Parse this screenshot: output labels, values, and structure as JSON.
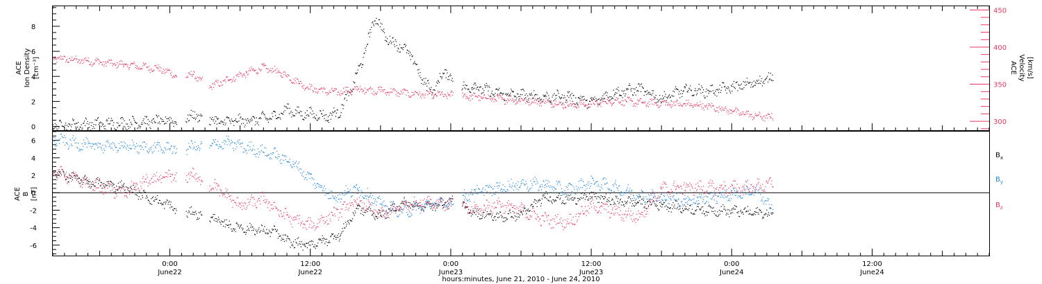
{
  "colors": {
    "black": "#000000",
    "pink": "#e8365f",
    "blue": "#1f86e0",
    "frame": "#000000",
    "background": "#ffffff"
  },
  "chart_data": [
    {
      "type": "scatter",
      "title": "",
      "time_range": [
        "2010-06-21 14:00",
        "2010-06-24 22:00"
      ],
      "xlabel": "hours:minutes, June 21, 2010 - June 24, 2010",
      "x_ticks": [
        {
          "time": "2010-06-22 00:00",
          "line1": "0:00",
          "line2": "June22"
        },
        {
          "time": "2010-06-22 12:00",
          "line1": "12:00",
          "line2": "June22"
        },
        {
          "time": "2010-06-23 00:00",
          "line1": "0:00",
          "line2": "June23"
        },
        {
          "time": "2010-06-23 12:00",
          "line1": "12:00",
          "line2": "June23"
        },
        {
          "time": "2010-06-24 00:00",
          "line1": "0:00",
          "line2": "June24"
        },
        {
          "time": "2010-06-24 12:00",
          "line1": "12:00",
          "line2": "June24"
        }
      ],
      "ylabel_left": [
        "ACE",
        "Ion Density",
        "[cm⁻³]"
      ],
      "ylabel_right": [
        "ACE",
        "Velocity",
        "[km/s]"
      ],
      "ylim_left": [
        -0.3,
        9.6
      ],
      "ylim_right": [
        288,
        455
      ],
      "yticks_left": [
        "0",
        "2",
        "4",
        "6",
        "8"
      ],
      "yticks_right": [
        "300",
        "350",
        "400",
        "450"
      ],
      "series": [
        {
          "axis": "left",
          "color": "#000000",
          "points": [
            [
              "2010-06-21 14:00",
              0.1
            ],
            [
              "2010-06-21 18:00",
              0.2
            ],
            [
              "2010-06-21 22:00",
              0.35
            ],
            [
              "2010-06-22 00:30",
              0.5
            ],
            [
              "2010-06-22 02:30",
              0.9
            ],
            [
              "2010-06-22 04:00",
              0.35
            ],
            [
              "2010-06-22 07:00",
              0.5
            ],
            [
              "2010-06-22 09:00",
              0.8
            ],
            [
              "2010-06-22 10:00",
              1.4
            ],
            [
              "2010-06-22 11:00",
              1.0
            ],
            [
              "2010-06-22 12:00",
              1.0
            ],
            [
              "2010-06-22 13:30",
              0.8
            ],
            [
              "2010-06-22 14:30",
              1.2
            ],
            [
              "2010-06-22 15:30",
              3.0
            ],
            [
              "2010-06-22 16:30",
              5.5
            ],
            [
              "2010-06-22 17:30",
              8.8
            ],
            [
              "2010-06-22 18:30",
              7.0
            ],
            [
              "2010-06-22 19:30",
              6.5
            ],
            [
              "2010-06-22 20:30",
              5.8
            ],
            [
              "2010-06-22 21:30",
              3.8
            ],
            [
              "2010-06-22 22:30",
              2.8
            ],
            [
              "2010-06-22 23:30",
              4.5
            ],
            [
              "2010-06-23 00:30",
              3.0
            ],
            [
              "2010-06-23 02:00",
              3.2
            ],
            [
              "2010-06-23 04:00",
              2.6
            ],
            [
              "2010-06-23 06:00",
              2.5
            ],
            [
              "2010-06-23 08:00",
              2.3
            ],
            [
              "2010-06-23 10:00",
              2.4
            ],
            [
              "2010-06-23 12:00",
              1.9
            ],
            [
              "2010-06-23 14:00",
              2.7
            ],
            [
              "2010-06-23 16:00",
              3.0
            ],
            [
              "2010-06-23 18:00",
              2.2
            ],
            [
              "2010-06-23 20:00",
              2.9
            ],
            [
              "2010-06-23 22:00",
              2.8
            ],
            [
              "2010-06-24 00:00",
              3.1
            ],
            [
              "2010-06-24 02:00",
              3.5
            ],
            [
              "2010-06-24 03:30",
              3.9
            ]
          ]
        },
        {
          "axis": "right",
          "color": "#e8365f",
          "points": [
            [
              "2010-06-21 14:00",
              385
            ],
            [
              "2010-06-21 17:00",
              381
            ],
            [
              "2010-06-21 20:00",
              376
            ],
            [
              "2010-06-21 23:00",
              371
            ],
            [
              "2010-06-22 00:30",
              362
            ],
            [
              "2010-06-22 02:00",
              362
            ],
            [
              "2010-06-22 03:30",
              347
            ],
            [
              "2010-06-22 05:00",
              356
            ],
            [
              "2010-06-22 06:30",
              365
            ],
            [
              "2010-06-22 08:00",
              372
            ],
            [
              "2010-06-22 09:30",
              365
            ],
            [
              "2010-06-22 11:00",
              352
            ],
            [
              "2010-06-22 12:00",
              344
            ],
            [
              "2010-06-22 14:00",
              339
            ],
            [
              "2010-06-22 16:00",
              343
            ],
            [
              "2010-06-22 18:00",
              341
            ],
            [
              "2010-06-22 20:00",
              338
            ],
            [
              "2010-06-22 22:00",
              336
            ],
            [
              "2010-06-23 00:00",
              335
            ],
            [
              "2010-06-23 02:00",
              333
            ],
            [
              "2010-06-23 04:00",
              330
            ],
            [
              "2010-06-23 06:00",
              328
            ],
            [
              "2010-06-23 08:00",
              326
            ],
            [
              "2010-06-23 10:00",
              322
            ],
            [
              "2010-06-23 12:00",
              323
            ],
            [
              "2010-06-23 14:00",
              328
            ],
            [
              "2010-06-23 16:00",
              325
            ],
            [
              "2010-06-23 18:00",
              324
            ],
            [
              "2010-06-23 20:00",
              323
            ],
            [
              "2010-06-23 22:00",
              320
            ],
            [
              "2010-06-24 00:00",
              314
            ],
            [
              "2010-06-24 02:00",
              307
            ],
            [
              "2010-06-24 03:30",
              305
            ]
          ]
        }
      ]
    },
    {
      "type": "scatter",
      "title": "",
      "time_range": [
        "2010-06-21 14:00",
        "2010-06-24 22:00"
      ],
      "ylabel_left": [
        "ACE",
        "B",
        "[nT]"
      ],
      "ylim": [
        -7.2,
        7.0
      ],
      "yticks": [
        "-6",
        "-4",
        "-2",
        "0",
        "2",
        "4",
        "6"
      ],
      "zero_line": true,
      "legend_position": "right",
      "series": [
        {
          "name": "Bx",
          "legend_main": "B",
          "legend_sub": "x",
          "color": "#000000",
          "points": [
            [
              "2010-06-21 14:00",
              2.4
            ],
            [
              "2010-06-21 17:00",
              1.2
            ],
            [
              "2010-06-21 20:00",
              0.7
            ],
            [
              "2010-06-21 22:00",
              -0.5
            ],
            [
              "2010-06-22 00:00",
              -1.5
            ],
            [
              "2010-06-22 01:00",
              -2.2
            ],
            [
              "2010-06-22 03:00",
              -2.5
            ],
            [
              "2010-06-22 05:00",
              -3.8
            ],
            [
              "2010-06-22 07:00",
              -4.2
            ],
            [
              "2010-06-22 09:00",
              -4.5
            ],
            [
              "2010-06-22 10:00",
              -5.6
            ],
            [
              "2010-06-22 11:30",
              -6.0
            ],
            [
              "2010-06-22 13:00",
              -5.6
            ],
            [
              "2010-06-22 14:30",
              -4.8
            ],
            [
              "2010-06-22 16:00",
              -1.8
            ],
            [
              "2010-06-22 18:00",
              -2.6
            ],
            [
              "2010-06-22 20:00",
              -1.2
            ],
            [
              "2010-06-22 22:00",
              -1.6
            ],
            [
              "2010-06-23 00:00",
              -1.0
            ],
            [
              "2010-06-23 02:00",
              -2.3
            ],
            [
              "2010-06-23 04:00",
              -2.8
            ],
            [
              "2010-06-23 06:00",
              -2.5
            ],
            [
              "2010-06-23 08:00",
              -0.5
            ],
            [
              "2010-06-23 10:00",
              -0.8
            ],
            [
              "2010-06-23 12:00",
              -0.4
            ],
            [
              "2010-06-23 14:00",
              -1.0
            ],
            [
              "2010-06-23 16:00",
              -1.1
            ],
            [
              "2010-06-23 18:00",
              -1.4
            ],
            [
              "2010-06-23 20:00",
              -1.8
            ],
            [
              "2010-06-23 22:00",
              -2.0
            ],
            [
              "2010-06-24 00:00",
              -2.1
            ],
            [
              "2010-06-24 02:00",
              -2.3
            ],
            [
              "2010-06-24 03:30",
              -2.4
            ]
          ]
        },
        {
          "name": "By",
          "legend_main": "B",
          "legend_sub": "y",
          "color": "#1f86e0",
          "points": [
            [
              "2010-06-21 14:00",
              6.1
            ],
            [
              "2010-06-21 17:00",
              5.4
            ],
            [
              "2010-06-21 20:00",
              5.3
            ],
            [
              "2010-06-21 23:00",
              5.1
            ],
            [
              "2010-06-22 01:00",
              5.1
            ],
            [
              "2010-06-22 03:00",
              5.4
            ],
            [
              "2010-06-22 05:00",
              5.7
            ],
            [
              "2010-06-22 07:00",
              5.0
            ],
            [
              "2010-06-22 09:00",
              4.3
            ],
            [
              "2010-06-22 10:30",
              3.4
            ],
            [
              "2010-06-22 12:00",
              1.6
            ],
            [
              "2010-06-22 14:00",
              -0.6
            ],
            [
              "2010-06-22 16:00",
              0.5
            ],
            [
              "2010-06-22 18:00",
              -1.3
            ],
            [
              "2010-06-22 20:00",
              -2.2
            ],
            [
              "2010-06-22 22:00",
              -1.4
            ],
            [
              "2010-06-23 00:00",
              -1.2
            ],
            [
              "2010-06-23 02:00",
              0.1
            ],
            [
              "2010-06-23 04:00",
              0.5
            ],
            [
              "2010-06-23 06:00",
              1.0
            ],
            [
              "2010-06-23 08:00",
              0.9
            ],
            [
              "2010-06-23 10:00",
              0.3
            ],
            [
              "2010-06-23 12:00",
              1.2
            ],
            [
              "2010-06-23 14:00",
              0.6
            ],
            [
              "2010-06-23 16:00",
              -0.3
            ],
            [
              "2010-06-23 18:00",
              -0.6
            ],
            [
              "2010-06-23 20:00",
              -0.9
            ],
            [
              "2010-06-23 22:00",
              -0.6
            ],
            [
              "2010-06-24 00:00",
              -0.2
            ],
            [
              "2010-06-24 02:00",
              0.2
            ],
            [
              "2010-06-24 03:30",
              -1.9
            ]
          ]
        },
        {
          "name": "Bz",
          "legend_main": "B",
          "legend_sub": "z",
          "color": "#e8365f",
          "points": [
            [
              "2010-06-21 14:00",
              2.5
            ],
            [
              "2010-06-21 16:00",
              1.5
            ],
            [
              "2010-06-21 18:00",
              0.6
            ],
            [
              "2010-06-21 20:00",
              0.0
            ],
            [
              "2010-06-21 22:00",
              1.3
            ],
            [
              "2010-06-22 00:00",
              1.8
            ],
            [
              "2010-06-22 02:00",
              2.0
            ],
            [
              "2010-06-22 04:00",
              0.5
            ],
            [
              "2010-06-22 06:00",
              -1.5
            ],
            [
              "2010-06-22 08:00",
              -0.8
            ],
            [
              "2010-06-22 10:00",
              -2.8
            ],
            [
              "2010-06-22 12:00",
              -3.8
            ],
            [
              "2010-06-22 14:00",
              -2.5
            ],
            [
              "2010-06-22 16:00",
              -1.0
            ],
            [
              "2010-06-22 18:00",
              -2.6
            ],
            [
              "2010-06-22 20:00",
              -1.5
            ],
            [
              "2010-06-22 22:00",
              -1.0
            ],
            [
              "2010-06-23 00:00",
              -1.4
            ],
            [
              "2010-06-23 02:00",
              -2.0
            ],
            [
              "2010-06-23 04:00",
              -1.3
            ],
            [
              "2010-06-23 06:00",
              -2.0
            ],
            [
              "2010-06-23 08:00",
              -3.1
            ],
            [
              "2010-06-23 10:00",
              -3.4
            ],
            [
              "2010-06-23 12:00",
              -1.5
            ],
            [
              "2010-06-23 14:00",
              -2.2
            ],
            [
              "2010-06-23 16:00",
              -2.8
            ],
            [
              "2010-06-23 18:00",
              0.4
            ],
            [
              "2010-06-23 20:00",
              0.6
            ],
            [
              "2010-06-23 22:00",
              0.5
            ],
            [
              "2010-06-24 00:00",
              0.5
            ],
            [
              "2010-06-24 02:00",
              0.7
            ],
            [
              "2010-06-24 03:30",
              1.0
            ]
          ]
        }
      ]
    }
  ]
}
